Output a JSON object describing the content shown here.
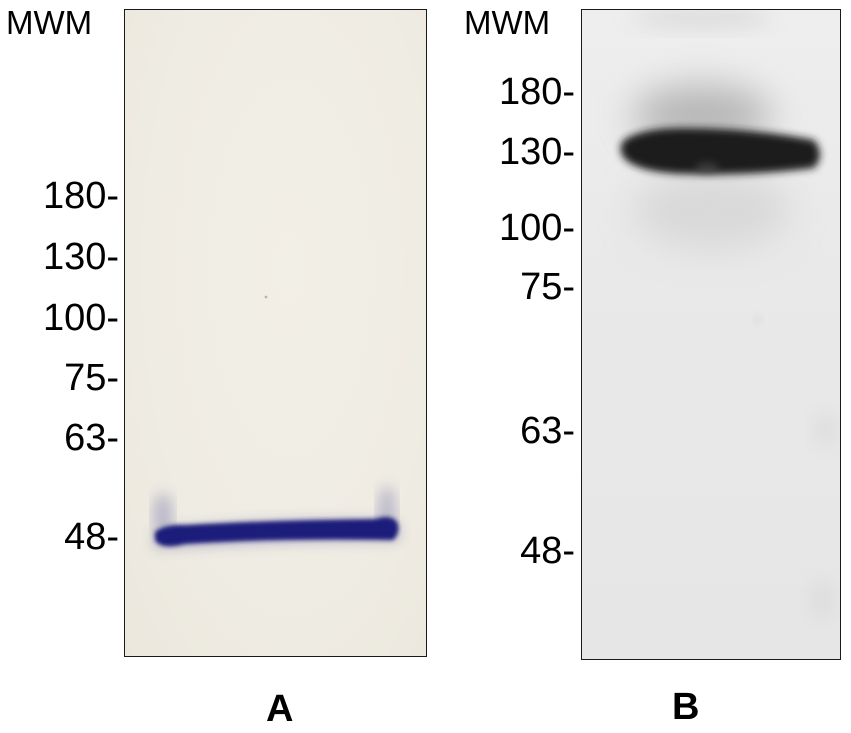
{
  "panels": [
    {
      "label": "A",
      "marker_header": "MWM",
      "markers": [
        "180-",
        "130-",
        "100-",
        "75-",
        "63-",
        "48-"
      ],
      "stain_color": "#1f1f7a",
      "background_color": "#efece3"
    },
    {
      "label": "B",
      "marker_header": "MWM",
      "markers": [
        "180-",
        "130-",
        "100-",
        "75-",
        "63-",
        "48-"
      ],
      "stain_color": "#1a1a1a",
      "background_color": "#e9e9e9"
    }
  ]
}
